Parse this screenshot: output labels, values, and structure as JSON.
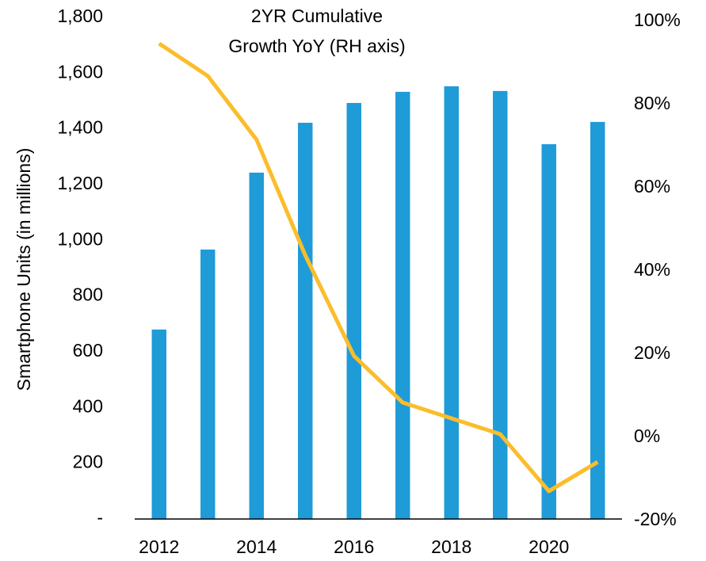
{
  "chart_data": {
    "type": "bar",
    "annotation": [
      "2YR Cumulative",
      "Growth YoY (RH axis)"
    ],
    "y_label": "Smartphone Units (in millions)",
    "x": [
      2012,
      2013,
      2014,
      2015,
      2016,
      2017,
      2018,
      2019,
      2020,
      2021
    ],
    "xlim": [
      2011.5,
      2021.5
    ],
    "xticks": [
      2012,
      2014,
      2016,
      2018,
      2020
    ],
    "ylim": [
      0,
      1800
    ],
    "yticks": [
      {
        "value": 0,
        "label": "-"
      },
      {
        "value": 200,
        "label": "200"
      },
      {
        "value": 400,
        "label": "400"
      },
      {
        "value": 600,
        "label": "600"
      },
      {
        "value": 800,
        "label": "800"
      },
      {
        "value": 1000,
        "label": "1,000"
      },
      {
        "value": 1200,
        "label": "1,200"
      },
      {
        "value": 1400,
        "label": "1,400"
      },
      {
        "value": 1600,
        "label": "1,600"
      },
      {
        "value": 1800,
        "label": "1,800"
      }
    ],
    "y2lim": [
      -20,
      100
    ],
    "y2ticks": [
      {
        "value": -20,
        "label": "-20%"
      },
      {
        "value": 0,
        "label": "0%"
      },
      {
        "value": 20,
        "label": "20%"
      },
      {
        "value": 40,
        "label": "40%"
      },
      {
        "value": 60,
        "label": "60%"
      },
      {
        "value": 80,
        "label": "80%"
      },
      {
        "value": 100,
        "label": "100%"
      }
    ],
    "grid": false,
    "series": [
      {
        "type": "bar",
        "color": "#1f9bd7",
        "values": [
          680,
          967,
          1243,
          1422,
          1493,
          1533,
          1553,
          1536,
          1345,
          1425
        ]
      },
      {
        "type": "line",
        "axis": "y2",
        "color": "#fbbd2c",
        "values": [
          94.3,
          86.5,
          71.2,
          43.4,
          19.2,
          8.0,
          4.2,
          0.4,
          -13.3,
          -6.3
        ]
      }
    ]
  }
}
